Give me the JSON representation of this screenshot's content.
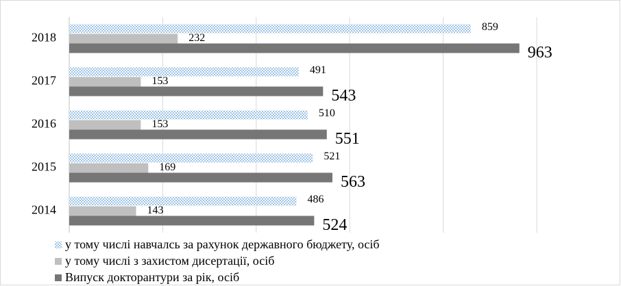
{
  "chart_data": {
    "type": "hbar",
    "categories": [
      "2018",
      "2017",
      "2016",
      "2015",
      "2014"
    ],
    "series": [
      {
        "name": "у тому числі навчалсь за рахунок державного бюджету, осіб",
        "color": "#9dc3e6",
        "values": [
          859,
          491,
          510,
          521,
          486
        ]
      },
      {
        "name": "у тому числі з захистом дисертації, осіб",
        "color": "#bfbfbf",
        "values": [
          232,
          153,
          153,
          169,
          143
        ]
      },
      {
        "name": "Випуск  докторантури за рік, осіб",
        "color": "#767676",
        "values": [
          963,
          543,
          551,
          563,
          524
        ]
      }
    ],
    "xlim": [
      0,
      1000
    ],
    "xticks": [
      0,
      200,
      400,
      600,
      800,
      1000
    ],
    "grid": true,
    "legend": "bottom"
  }
}
